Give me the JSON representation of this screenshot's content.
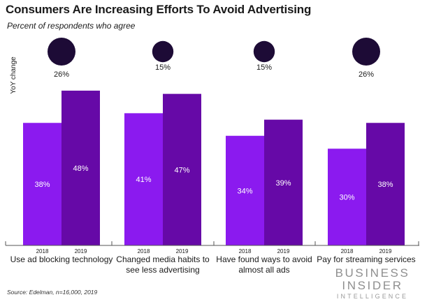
{
  "title": "Consumers Are Increasing Efforts To Avoid Advertising",
  "subtitle": "Percent of respondents who agree",
  "source": "Source: Edelman, n=16,000, 2019",
  "logo": {
    "line1": "BUSINESS",
    "line2": "INSIDER",
    "line3": "INTELLIGENCE"
  },
  "colors": {
    "bar_2018": "#8b1aef",
    "bar_2019": "#6609a7",
    "bubble": "#1d0b36",
    "text": "#1a1a1a",
    "axis": "#555555"
  },
  "chart_data": {
    "type": "bar",
    "title": "Consumers Are Increasing Efforts To Avoid Advertising",
    "subtitle": "Percent of respondents who agree",
    "categories": [
      "Use ad blocking technology",
      "Changed media habits to see less advertising",
      "Have found ways to avoid almost all ads",
      "Pay for streaming services"
    ],
    "category_lines": [
      [
        "Use ad blocking technology"
      ],
      [
        "Changed media habits to",
        "see less advertising"
      ],
      [
        "Have found ways to avoid",
        "almost all ads"
      ],
      [
        "Pay for streaming services"
      ]
    ],
    "series": [
      {
        "name": "2018",
        "values": [
          38,
          41,
          34,
          30
        ]
      },
      {
        "name": "2019",
        "values": [
          48,
          47,
          39,
          38
        ]
      }
    ],
    "value_suffix": "%",
    "yoy_label": "YoY change",
    "yoy_values": [
      26,
      15,
      15,
      26
    ],
    "ylim": [
      0,
      48
    ],
    "grid": false,
    "legend": "none"
  }
}
